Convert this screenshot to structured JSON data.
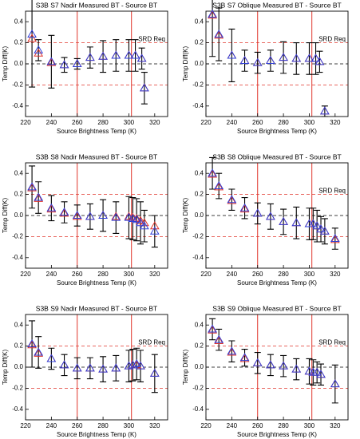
{
  "chart_data": [
    {
      "type": "scatter",
      "title": "S3B S7 Nadir Measured BT - Source BT",
      "x_label": "Source Brightness Temp (K)",
      "y_label": "Temp Diff(K)",
      "annotation": "SRD Req",
      "xlim": [
        220,
        330
      ],
      "xticks": [
        220,
        240,
        260,
        280,
        300,
        320
      ],
      "ylim": [
        -0.5,
        0.5
      ],
      "yticks": [
        -0.4,
        -0.2,
        {
          "value": 0,
          "label": "0.0"
        },
        0.2,
        0.4
      ],
      "ref_lines": {
        "x": [
          260,
          302
        ],
        "y": [
          -0.2,
          0.2
        ]
      },
      "x": [
        225,
        230,
        240,
        250,
        260,
        270,
        280,
        290,
        300,
        305,
        310,
        312
      ],
      "series": [
        {
          "color": "#2f3fd8",
          "values": [
            0.28,
            0.13,
            0.02,
            -0.01,
            0,
            0.06,
            0.07,
            0.08,
            0.08,
            0.08,
            0.05,
            -0.23
          ],
          "errors": [
            0.5,
            0.1,
            0.25,
            0.07,
            0.05,
            0.1,
            0.15,
            0.15,
            0.15,
            0.15,
            0.1,
            0.15
          ]
        },
        {
          "color": "#e0352b",
          "values": [
            0.24,
            0.1,
            0.01,
            -0.01,
            0,
            0.06,
            0.07,
            0.08,
            0.08,
            0.08,
            0.05,
            -0.23
          ]
        }
      ]
    },
    {
      "type": "scatter",
      "title": "S3B S7 Oblique Measured BT - Source BT",
      "x_label": "Source Brightness Temp (K)",
      "y_label": "Temp Diff(K)",
      "annotation": "SRD Req",
      "xlim": [
        220,
        330
      ],
      "xticks": [
        220,
        240,
        260,
        280,
        300,
        320
      ],
      "ylim": [
        -0.5,
        0.5
      ],
      "yticks": [
        -0.4,
        -0.2,
        {
          "value": 0,
          "label": "0.0"
        },
        0.2,
        0.4
      ],
      "ref_lines": {
        "x": [
          260,
          302
        ],
        "y": [
          -0.2,
          0.2
        ]
      },
      "x": [
        225,
        230,
        240,
        250,
        260,
        270,
        280,
        290,
        300,
        305,
        308,
        312
      ],
      "series": [
        {
          "color": "#2f3fd8",
          "values": [
            0.47,
            0.28,
            0.08,
            0.03,
            0.01,
            0.03,
            0.06,
            0.05,
            0.05,
            0.05,
            0.02,
            -0.45
          ],
          "errors": [
            0.4,
            0.25,
            0.25,
            0.1,
            0.1,
            0.1,
            0.15,
            0.15,
            0.15,
            0.15,
            0.1,
            0.05
          ]
        },
        {
          "color": "#e0352b",
          "values": [
            0.46,
            0.27,
            0.08,
            0.03,
            0.01,
            0.03,
            0.06,
            0.05,
            0.05,
            0.05,
            0.02,
            -0.45
          ]
        }
      ]
    },
    {
      "type": "scatter",
      "title": "S3B S8 Nadir Measured BT - Source BT",
      "x_label": "Source Brightness Temp (K)",
      "y_label": "Temp Diff(K)",
      "xlim": [
        220,
        330
      ],
      "xticks": [
        220,
        240,
        260,
        280,
        300,
        320
      ],
      "ylim": [
        -0.5,
        0.5
      ],
      "yticks": [
        -0.4,
        -0.2,
        {
          "value": 0,
          "label": "0.0"
        },
        0.2,
        0.4
      ],
      "ref_lines": {
        "x": [
          260,
          302
        ],
        "y": [
          -0.2,
          0.2
        ]
      },
      "x": [
        225,
        230,
        240,
        250,
        260,
        270,
        280,
        290,
        300,
        303,
        306,
        309,
        312,
        320
      ],
      "series": [
        {
          "color": "#2f3fd8",
          "values": [
            0.27,
            0.17,
            0.07,
            0.03,
            0,
            -0.01,
            0,
            -0.02,
            -0.02,
            -0.03,
            -0.04,
            -0.07,
            -0.1,
            -0.15
          ],
          "errors": [
            0.2,
            0.15,
            0.12,
            0.1,
            0.1,
            0.12,
            0.15,
            0.15,
            0.2,
            0.2,
            0.2,
            0.2,
            0.15,
            0.15
          ]
        },
        {
          "color": "#e0352b",
          "values": [
            0.26,
            0.16,
            0.06,
            0.02,
            -0.01,
            -0.01,
            0,
            -0.01,
            -0.01,
            -0.02,
            -0.03,
            -0.05,
            -0.07,
            -0.1
          ]
        }
      ]
    },
    {
      "type": "scatter",
      "title": "S3B S8 Oblique Measured BT - Source BT",
      "x_label": "Source Brightness Temp (K)",
      "y_label": "Temp Diff(K)",
      "annotation": "SRD Req",
      "xlim": [
        220,
        330
      ],
      "xticks": [
        220,
        240,
        260,
        280,
        300,
        320
      ],
      "ylim": [
        -0.5,
        0.5
      ],
      "yticks": [
        -0.4,
        -0.2,
        {
          "value": 0,
          "label": "0.0"
        },
        0.2,
        0.4
      ],
      "ref_lines": {
        "x": [
          260,
          302
        ],
        "y": [
          -0.2,
          0.2
        ]
      },
      "x": [
        225,
        230,
        240,
        250,
        260,
        270,
        280,
        290,
        300,
        303,
        306,
        309,
        312,
        320
      ],
      "series": [
        {
          "color": "#2f3fd8",
          "values": [
            0.4,
            0.28,
            0.15,
            0.07,
            0.02,
            -0.01,
            -0.06,
            -0.07,
            -0.08,
            -0.08,
            -0.1,
            -0.13,
            -0.15,
            -0.22
          ],
          "errors": [
            0.15,
            0.12,
            0.1,
            0.1,
            0.1,
            0.12,
            0.12,
            0.15,
            0.15,
            0.15,
            0.15,
            0.12,
            0.12,
            0.1
          ]
        },
        {
          "color": "#e0352b",
          "values": [
            0.39,
            0.27,
            0.14,
            0.06,
            0.02,
            -0.01,
            -0.06,
            -0.07,
            -0.08,
            -0.08,
            -0.1,
            -0.13,
            -0.15,
            -0.23
          ]
        }
      ]
    },
    {
      "type": "scatter",
      "title": "S3B S9 Nadir Measured BT - Source BT",
      "x_label": "Source Brightness Temp (K)",
      "y_label": "Temp Diff(K)",
      "annotation": "SRD Req",
      "xlim": [
        220,
        330
      ],
      "xticks": [
        220,
        240,
        260,
        280,
        300,
        320
      ],
      "ylim": [
        -0.5,
        0.5
      ],
      "yticks": [
        -0.4,
        -0.2,
        {
          "value": 0,
          "label": "0.0"
        },
        0.2,
        0.4
      ],
      "ref_lines": {
        "x": [
          260,
          302
        ],
        "y": [
          -0.2,
          0.2
        ]
      },
      "x": [
        225,
        230,
        240,
        250,
        260,
        270,
        280,
        290,
        300,
        303,
        306,
        309,
        320
      ],
      "series": [
        {
          "color": "#2f3fd8",
          "values": [
            0.22,
            0.14,
            0.08,
            0.02,
            -0.01,
            -0.01,
            -0.02,
            -0.01,
            0.01,
            0.02,
            0.03,
            0.01,
            -0.06
          ],
          "errors": [
            0.22,
            0.15,
            0.1,
            0.1,
            0.1,
            0.1,
            0.12,
            0.12,
            0.15,
            0.15,
            0.15,
            0.15,
            0.18
          ]
        },
        {
          "color": "#e0352b",
          "values": [
            0.21,
            0.13,
            0.08,
            0.02,
            -0.01,
            -0.01,
            -0.02,
            -0.01,
            0.01,
            0.02,
            0.02,
            0.01,
            -0.06
          ]
        }
      ]
    },
    {
      "type": "scatter",
      "title": "S3B S9 Oblique Measured BT - Source BT",
      "x_label": "Source Brightness Temp (K)",
      "y_label": "Temp Diff(K)",
      "annotation": "SRD Req",
      "xlim": [
        220,
        330
      ],
      "xticks": [
        220,
        240,
        260,
        280,
        300,
        320
      ],
      "ylim": [
        -0.5,
        0.5
      ],
      "yticks": [
        -0.4,
        -0.2,
        {
          "value": 0,
          "label": "0.0"
        },
        0.2,
        0.4
      ],
      "ref_lines": {
        "x": [
          260,
          302
        ],
        "y": [
          -0.2,
          0.2
        ]
      },
      "x": [
        225,
        230,
        240,
        250,
        260,
        270,
        280,
        290,
        300,
        303,
        306,
        309,
        320
      ],
      "series": [
        {
          "color": "#2f3fd8",
          "values": [
            0.36,
            0.26,
            0.15,
            0.09,
            0.04,
            0.02,
            0.01,
            -0.02,
            -0.04,
            -0.05,
            -0.05,
            -0.07,
            -0.16
          ],
          "errors": [
            0.1,
            0.1,
            0.1,
            0.08,
            0.1,
            0.1,
            0.1,
            0.1,
            0.12,
            0.12,
            0.1,
            0.1,
            0.18
          ]
        },
        {
          "color": "#e0352b",
          "values": [
            0.35,
            0.25,
            0.14,
            0.08,
            0.04,
            0.02,
            0.01,
            -0.02,
            -0.04,
            -0.05,
            -0.05,
            -0.07,
            -0.16
          ]
        }
      ]
    }
  ]
}
